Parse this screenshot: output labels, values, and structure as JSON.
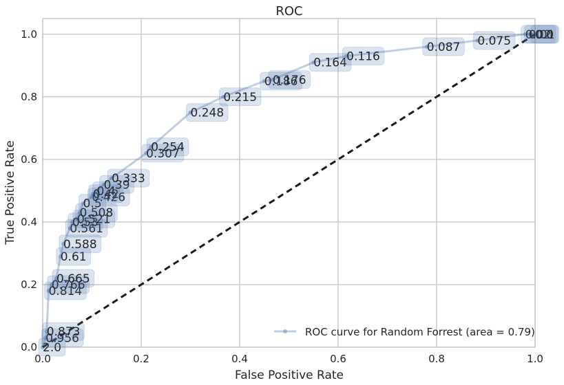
{
  "chart_data": {
    "type": "line",
    "title": "ROC",
    "xlabel": "False Positive Rate",
    "ylabel": "True Positive Rate",
    "xlim": [
      0.0,
      1.0
    ],
    "ylim": [
      0.0,
      1.05
    ],
    "xticks": [
      "0.0",
      "0.2",
      "0.4",
      "0.6",
      "0.8",
      "1.0"
    ],
    "yticks": [
      "0.0",
      "0.2",
      "0.4",
      "0.6",
      "0.8",
      "1.0"
    ],
    "grid": true,
    "legend_position": "lower-right",
    "series": [
      {
        "name": "ROC curve for Random Forrest (area = 0.79)",
        "color": "#4c72b0",
        "points": [
          {
            "x": 0.0,
            "y": 0.0,
            "label": "2.0"
          },
          {
            "x": 0.006,
            "y": 0.03,
            "label": "0.956"
          },
          {
            "x": 0.008,
            "y": 0.05,
            "label": "0.873"
          },
          {
            "x": 0.012,
            "y": 0.18,
            "label": "0.814"
          },
          {
            "x": 0.018,
            "y": 0.2,
            "label": "0.766"
          },
          {
            "x": 0.028,
            "y": 0.22,
            "label": "0.665"
          },
          {
            "x": 0.036,
            "y": 0.29,
            "label": "0.61"
          },
          {
            "x": 0.042,
            "y": 0.33,
            "label": "0.588"
          },
          {
            "x": 0.055,
            "y": 0.38,
            "label": "0.561"
          },
          {
            "x": 0.06,
            "y": 0.4,
            "label": "0.53"
          },
          {
            "x": 0.07,
            "y": 0.41,
            "label": "0.521"
          },
          {
            "x": 0.075,
            "y": 0.43,
            "label": "0.508"
          },
          {
            "x": 0.082,
            "y": 0.46,
            "label": "0.5"
          },
          {
            "x": 0.1,
            "y": 0.48,
            "label": "0.426"
          },
          {
            "x": 0.102,
            "y": 0.49,
            "label": "0.42"
          },
          {
            "x": 0.11,
            "y": 0.5,
            "label": "0.4"
          },
          {
            "x": 0.124,
            "y": 0.52,
            "label": "0.39"
          },
          {
            "x": 0.14,
            "y": 0.54,
            "label": "0.333"
          },
          {
            "x": 0.21,
            "y": 0.62,
            "label": "0.307"
          },
          {
            "x": 0.22,
            "y": 0.64,
            "label": "0.254"
          },
          {
            "x": 0.3,
            "y": 0.75,
            "label": "0.248"
          },
          {
            "x": 0.367,
            "y": 0.8,
            "label": "0.215"
          },
          {
            "x": 0.45,
            "y": 0.85,
            "label": "0.186"
          },
          {
            "x": 0.467,
            "y": 0.855,
            "label": "0.176"
          },
          {
            "x": 0.55,
            "y": 0.91,
            "label": "0.164"
          },
          {
            "x": 0.617,
            "y": 0.93,
            "label": "0.116"
          },
          {
            "x": 0.78,
            "y": 0.96,
            "label": "0.087"
          },
          {
            "x": 0.883,
            "y": 0.98,
            "label": "0.075"
          },
          {
            "x": 0.98,
            "y": 1.0,
            "label": "0.02"
          },
          {
            "x": 0.987,
            "y": 1.0,
            "label": "0.01"
          },
          {
            "x": 1.0,
            "y": 1.0,
            "label": "0.0"
          }
        ]
      },
      {
        "name": "",
        "color": "#1a1a1a",
        "dashed": true,
        "points": [
          {
            "x": 0.0,
            "y": 0.0
          },
          {
            "x": 1.0,
            "y": 1.0
          }
        ]
      }
    ]
  }
}
